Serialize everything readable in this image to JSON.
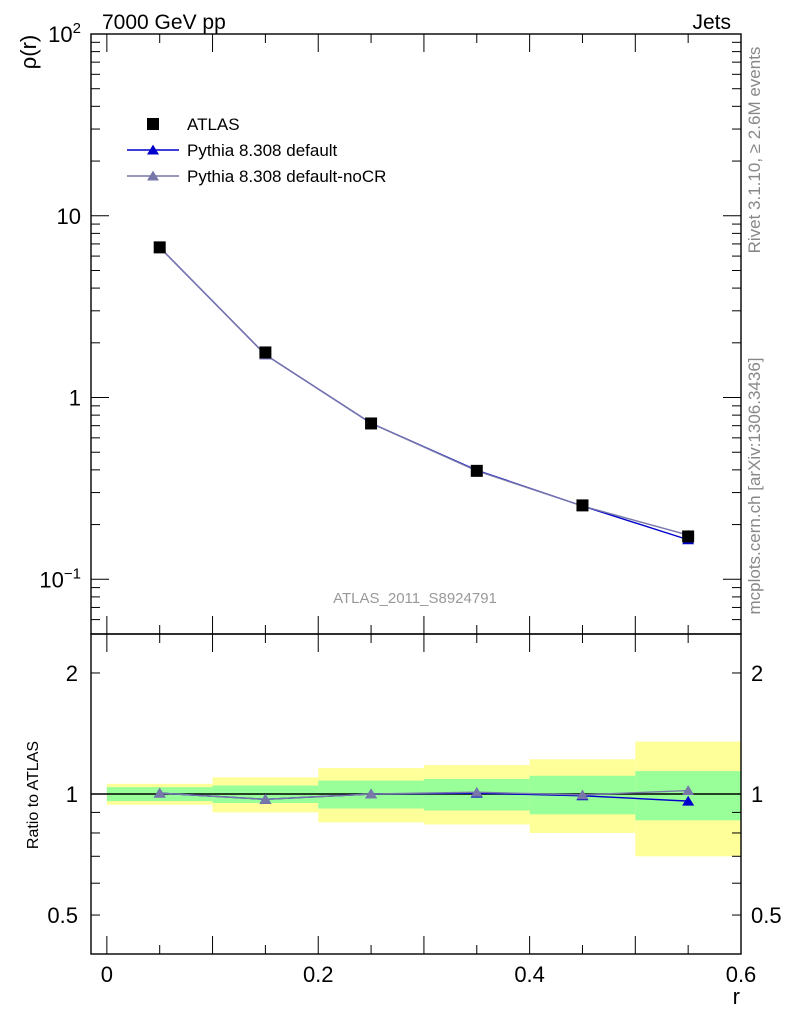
{
  "header": {
    "left_title": "7000 GeV pp",
    "right_title": "Jets"
  },
  "side": {
    "rivet": "Rivet 3.1.10, ≥ 2.6M events",
    "source": "mcplots.cern.ch [arXiv:1306.3436]"
  },
  "watermark": "ATLAS_2011_S8924791",
  "chart_data": [
    {
      "type": "scatter",
      "panel": "main",
      "ylabel": "ρ(r)",
      "yscale": "log",
      "ylim": [
        0.05,
        100
      ],
      "xlim": [
        -0.015,
        0.6
      ],
      "y_ticks": [
        {
          "value": 0.1,
          "label": "10",
          "exp": "−1"
        },
        {
          "value": 1,
          "label": "1",
          "exp": ""
        },
        {
          "value": 10,
          "label": "10",
          "exp": ""
        },
        {
          "value": 100,
          "label": "10",
          "exp": "2"
        }
      ],
      "legend_placement": "top-left",
      "x": [
        0.05,
        0.15,
        0.25,
        0.35,
        0.45,
        0.55
      ],
      "series": [
        {
          "name": "ATLAS",
          "color": "#000000",
          "marker": "square",
          "values": [
            6.7,
            1.77,
            0.72,
            0.395,
            0.255,
            0.172
          ]
        },
        {
          "name": "Pythia 8.308 default",
          "color": "#0000cc",
          "marker": "triangle",
          "values": [
            6.7,
            1.72,
            0.722,
            0.398,
            0.253,
            0.165
          ]
        },
        {
          "name": "Pythia 8.308 default-noCR",
          "color": "#7777aa",
          "marker": "triangle",
          "values": [
            6.7,
            1.72,
            0.722,
            0.395,
            0.253,
            0.175
          ]
        }
      ]
    },
    {
      "type": "scatter",
      "panel": "ratio",
      "xlabel": "r",
      "ylabel": "Ratio to ATLAS",
      "yscale": "log",
      "ylim": [
        0.4,
        2.5
      ],
      "xlim": [
        -0.015,
        0.6
      ],
      "y_ticks": [
        {
          "value": 0.5,
          "label": "0.5"
        },
        {
          "value": 1,
          "label": "1"
        },
        {
          "value": 2,
          "label": "2"
        }
      ],
      "x_ticks": [
        {
          "value": 0,
          "label": "0"
        },
        {
          "value": 0.2,
          "label": "0.2"
        },
        {
          "value": 0.4,
          "label": "0.4"
        },
        {
          "value": 0.6,
          "label": "0.6"
        }
      ],
      "bands": {
        "bin_edges": [
          0,
          0.1,
          0.2,
          0.3,
          0.4,
          0.5,
          0.6
        ],
        "stat": {
          "color": "#99ff99",
          "lo": [
            0.96,
            0.95,
            0.92,
            0.91,
            0.89,
            0.86
          ],
          "hi": [
            1.04,
            1.05,
            1.08,
            1.09,
            1.11,
            1.14
          ]
        },
        "total": {
          "color": "#ffff99",
          "lo": [
            0.94,
            0.9,
            0.85,
            0.84,
            0.8,
            0.7
          ],
          "hi": [
            1.06,
            1.1,
            1.16,
            1.18,
            1.22,
            1.35
          ]
        }
      },
      "x": [
        0.05,
        0.15,
        0.25,
        0.35,
        0.45,
        0.55
      ],
      "series": [
        {
          "name": "Pythia 8.308 default",
          "color": "#0000cc",
          "marker": "triangle",
          "values": [
            1.005,
            0.97,
            1.0,
            1.005,
            0.99,
            0.96
          ]
        },
        {
          "name": "Pythia 8.308 default-noCR",
          "color": "#7777aa",
          "marker": "triangle",
          "values": [
            1.005,
            0.97,
            1.0,
            1.01,
            0.995,
            1.02
          ]
        }
      ]
    }
  ]
}
